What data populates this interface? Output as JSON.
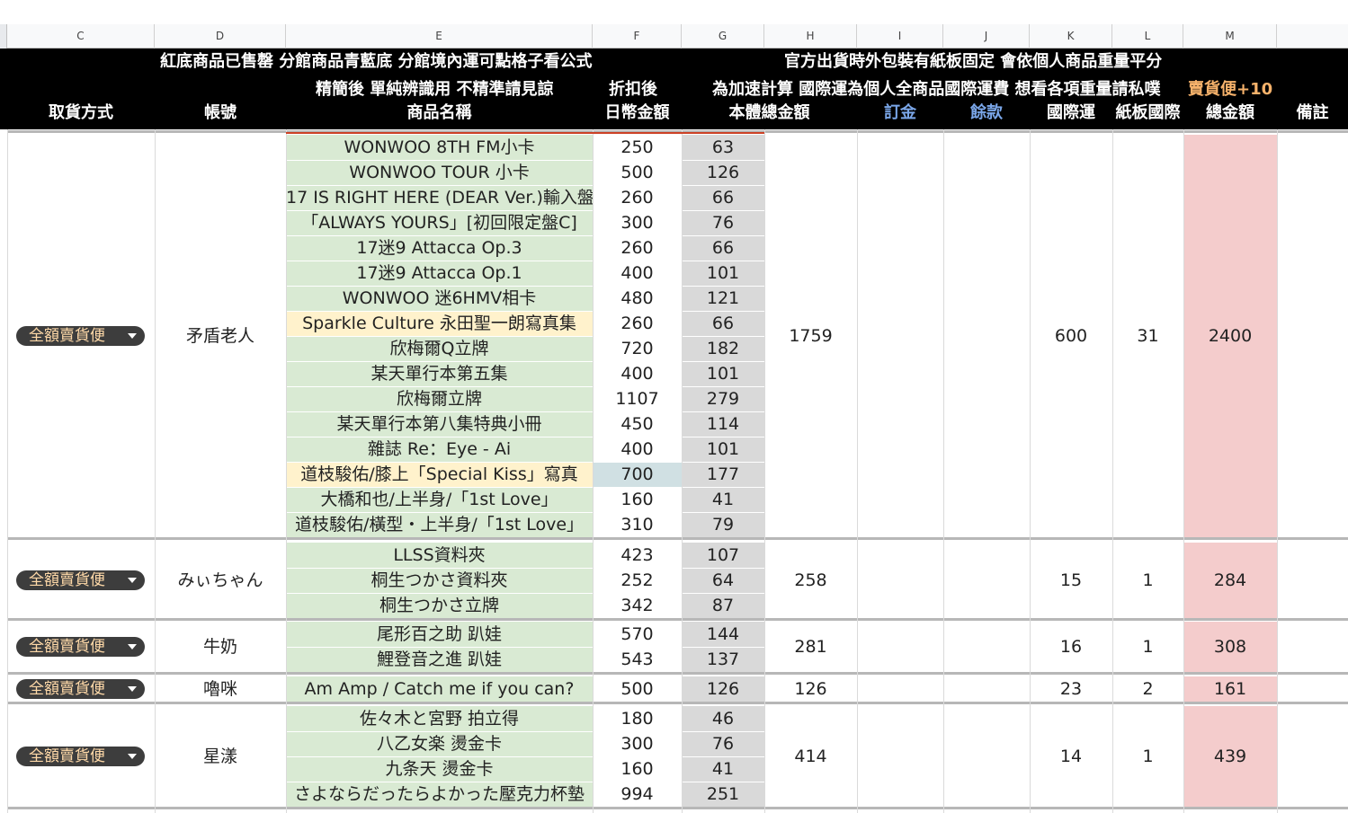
{
  "columns": [
    {
      "letter": "C"
    },
    {
      "letter": "D"
    },
    {
      "letter": "E"
    },
    {
      "letter": "F"
    },
    {
      "letter": "G"
    },
    {
      "letter": "H"
    },
    {
      "letter": "I"
    },
    {
      "letter": "J"
    },
    {
      "letter": "K"
    },
    {
      "letter": "L"
    },
    {
      "letter": "M"
    }
  ],
  "header": {
    "note_left": "紅底商品已售罄  分館商品青藍底 分館境內運可點格子看公式",
    "note_right": "官方出貨時外包裝有紙板固定 會依個人商品重量平分",
    "note_mid": "精簡後 單純辨識用 不精準請見諒",
    "discount_label": "折扣後",
    "note_calc": "為加速計算 國際運為個人全商品國際運費 想看各項重量請私噗",
    "note_orange": "賣貨便+10",
    "col_pickup": "取貨方式",
    "col_account": "帳號",
    "col_item": "商品名稱",
    "col_jpy": "日幣金額",
    "col_total_base": "本體總金額",
    "col_deposit": "訂金",
    "col_balance": "餘款",
    "col_intl": "國際運",
    "col_board": "紙板國際",
    "col_sum": "總金額",
    "col_note": "備註"
  },
  "colors": {
    "header_bg": "#000000",
    "header_text": "#ffffff",
    "header_blue": "#7aa6e8",
    "header_orange": "#f6b26b",
    "item_bg": "#d9ead3",
    "item_bg_yellow": "#fff2cc",
    "twd_bg": "#d9d9d9",
    "sum_bg": "#f4cccc",
    "chip_bg": "#3d3d3d",
    "chip_text": "#ffd9a8"
  },
  "groups": [
    {
      "method": "全額賣貨便",
      "account": "矛盾老人",
      "base_total": "1759",
      "deposit": "",
      "balance": "",
      "intl": "600",
      "board": "31",
      "sum": "2400",
      "note": "",
      "items": [
        {
          "name": "WONWOO 8TH FM小卡",
          "jpy": "250",
          "twd": "63"
        },
        {
          "name": "WONWOO TOUR 小卡",
          "jpy": "500",
          "twd": "126"
        },
        {
          "name": "17 IS RIGHT HERE (DEAR Ver.)輸入盤",
          "jpy": "260",
          "twd": "66"
        },
        {
          "name": "「ALWAYS YOURS」[初回限定盤C]",
          "jpy": "300",
          "twd": "76"
        },
        {
          "name": "17迷9 Attacca Op.3",
          "jpy": "260",
          "twd": "66"
        },
        {
          "name": "17迷9 Attacca Op.1",
          "jpy": "400",
          "twd": "101"
        },
        {
          "name": "WONWOO 迷6HMV相卡",
          "jpy": "480",
          "twd": "121"
        },
        {
          "name": "Sparkle Culture 永田聖一朗寫真集",
          "jpy": "260",
          "twd": "66",
          "highlight": "yellow"
        },
        {
          "name": "欣梅爾Q立牌",
          "jpy": "720",
          "twd": "182"
        },
        {
          "name": "某天單行本第五集",
          "jpy": "400",
          "twd": "101"
        },
        {
          "name": "欣梅爾立牌",
          "jpy": "1107",
          "twd": "279"
        },
        {
          "name": "某天單行本第八集特典小冊",
          "jpy": "450",
          "twd": "114"
        },
        {
          "name": "雜誌 Re：Eye - Ai",
          "jpy": "400",
          "twd": "101"
        },
        {
          "name": "道枝駿佑/膝上「Special Kiss」寫真",
          "jpy": "700",
          "twd": "177",
          "highlight": "yellow",
          "jpy_highlight": "teal"
        },
        {
          "name": "大橋和也/上半身/「1st Love」",
          "jpy": "160",
          "twd": "41"
        },
        {
          "name": "道枝駿佑/橫型・上半身/「1st Love」",
          "jpy": "310",
          "twd": "79"
        }
      ]
    },
    {
      "method": "全額賣貨便",
      "account": "みぃちゃん",
      "base_total": "258",
      "deposit": "",
      "balance": "",
      "intl": "15",
      "board": "1",
      "sum": "284",
      "note": "",
      "items": [
        {
          "name": "LLSS資料夾",
          "jpy": "423",
          "twd": "107"
        },
        {
          "name": "桐生つかさ資料夾",
          "jpy": "252",
          "twd": "64"
        },
        {
          "name": "桐生つかさ立牌",
          "jpy": "342",
          "twd": "87"
        }
      ]
    },
    {
      "method": "全額賣貨便",
      "account": "牛奶",
      "base_total": "281",
      "deposit": "",
      "balance": "",
      "intl": "16",
      "board": "1",
      "sum": "308",
      "note": "",
      "items": [
        {
          "name": "尾形百之助 趴娃",
          "jpy": "570",
          "twd": "144"
        },
        {
          "name": "鯉登音之進 趴娃",
          "jpy": "543",
          "twd": "137"
        }
      ]
    },
    {
      "method": "全額賣貨便",
      "account": "嚕咪",
      "base_total": "126",
      "deposit": "",
      "balance": "",
      "intl": "23",
      "board": "2",
      "sum": "161",
      "note": "",
      "items": [
        {
          "name": "Am Amp / Catch me if you can?",
          "jpy": "500",
          "twd": "126"
        }
      ]
    },
    {
      "method": "全額賣貨便",
      "account": "星漾",
      "base_total": "414",
      "deposit": "",
      "balance": "",
      "intl": "14",
      "board": "1",
      "sum": "439",
      "note": "",
      "items": [
        {
          "name": "佐々木と宮野 拍立得",
          "jpy": "180",
          "twd": "46"
        },
        {
          "name": "八乙女楽 燙金卡",
          "jpy": "300",
          "twd": "76"
        },
        {
          "name": "九条天 燙金卡",
          "jpy": "160",
          "twd": "41"
        },
        {
          "name": "さよならだったらよかった壓克力杯墊",
          "jpy": "994",
          "twd": "251"
        }
      ]
    }
  ]
}
